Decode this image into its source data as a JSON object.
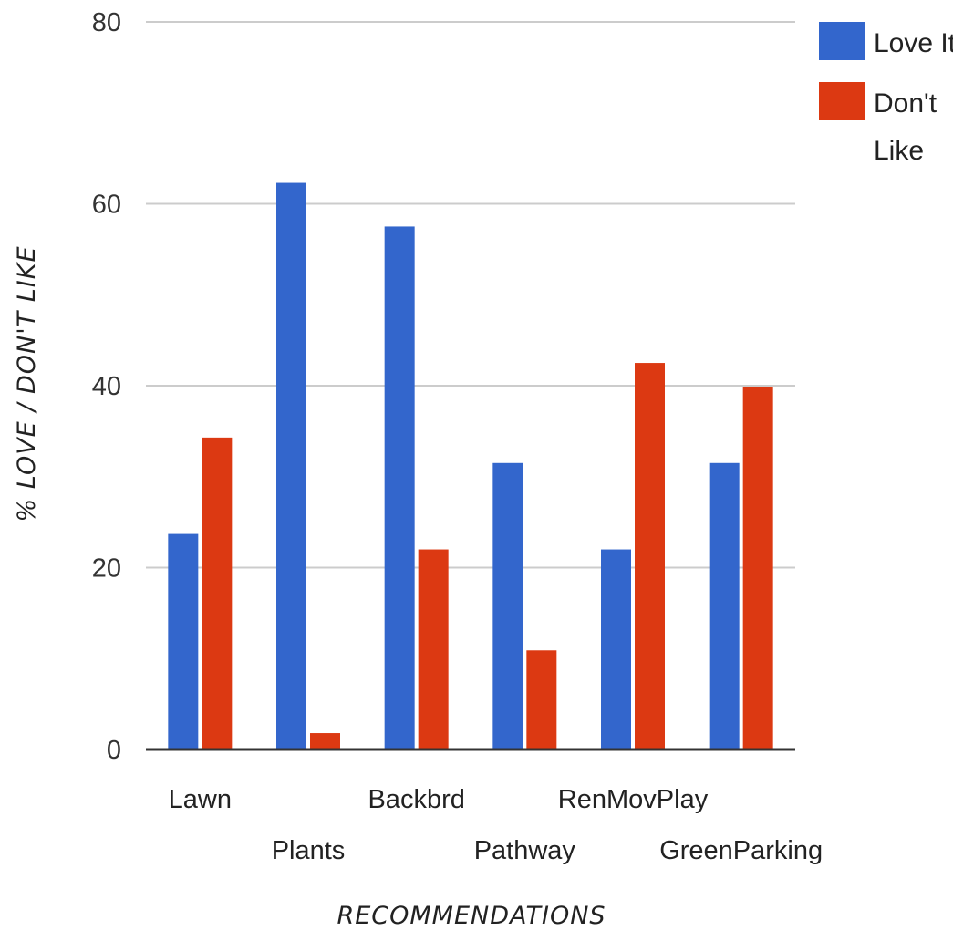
{
  "chart_data": {
    "type": "bar",
    "title": "",
    "xlabel": "RECOMMENDATIONS",
    "ylabel": "% LOVE / DON'T LIKE",
    "categories": [
      "Lawn",
      "Plants",
      "Backbrd",
      "Pathway",
      "RenMovPlay",
      "GreenParking"
    ],
    "series": [
      {
        "name": "Love It",
        "color": "#3366cc",
        "values": [
          23.7,
          62.3,
          57.5,
          31.5,
          22,
          31.5
        ]
      },
      {
        "name": "Don't Like",
        "color": "#dc3912",
        "values": [
          34.3,
          1.8,
          22,
          10.9,
          42.5,
          39.9
        ]
      }
    ],
    "yticks": [
      "0",
      "20",
      "40",
      "60",
      "80"
    ],
    "ylim": [
      0,
      80
    ],
    "grid": true,
    "legend_position": "top-right",
    "legend_entries": [
      {
        "lines": [
          "Love It"
        ],
        "color": "#3366cc"
      },
      {
        "lines": [
          "Don't",
          "Like"
        ],
        "color": "#dc3912"
      }
    ]
  }
}
